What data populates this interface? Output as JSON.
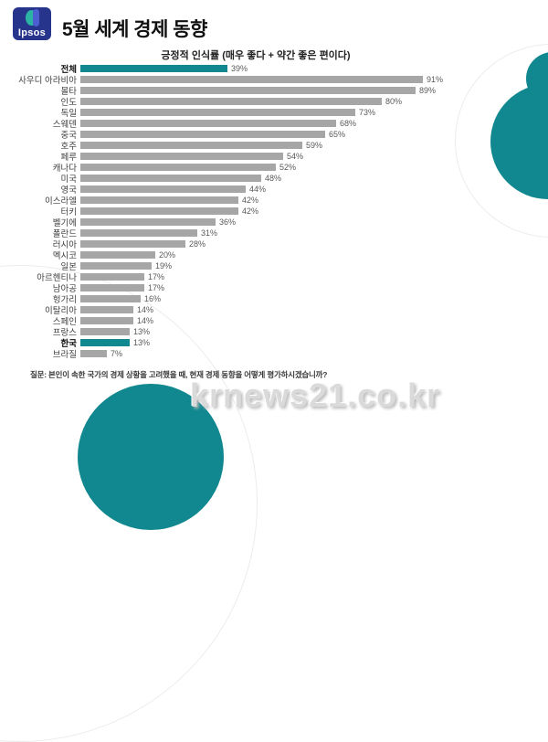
{
  "header": {
    "logo_text": "Ipsos",
    "title": "5월 세계 경제 동향"
  },
  "chart_data": {
    "type": "bar",
    "orientation": "horizontal",
    "title": "긍정적 인식률 (매우 좋다 + 약간 좋은 편이다)",
    "categories": [
      "전체",
      "사우디 아라비아",
      "몰타",
      "인도",
      "독일",
      "스웨덴",
      "중국",
      "호주",
      "페루",
      "캐나다",
      "미국",
      "영국",
      "이스라엘",
      "터키",
      "벨기에",
      "폴란드",
      "러시아",
      "멕시코",
      "일본",
      "아르헨티나",
      "남아공",
      "헝가리",
      "이탈리아",
      "스페인",
      "프랑스",
      "한국",
      "브라질"
    ],
    "values": [
      39,
      91,
      89,
      80,
      73,
      68,
      65,
      59,
      54,
      52,
      48,
      44,
      42,
      42,
      36,
      31,
      28,
      20,
      19,
      17,
      17,
      16,
      14,
      14,
      13,
      13,
      7
    ],
    "unit": "%",
    "xlim": [
      0,
      100
    ],
    "data_labels": true,
    "grid": false,
    "highlight_categories": [
      "전체",
      "한국"
    ],
    "bar_color": "#A6A6A6",
    "highlight_color": "#11888F"
  },
  "footer": {
    "question": "질문: 본인이 속한 국가의 경제 상황을 고려했을 때,  현재 경제 동향을 어떻게 평가하시겠습니까?",
    "watermark": "krnews21.co.kr"
  },
  "colors": {
    "accent_teal": "#11888F",
    "bar_gray": "#A6A6A6",
    "logo_navy": "#27348B"
  }
}
